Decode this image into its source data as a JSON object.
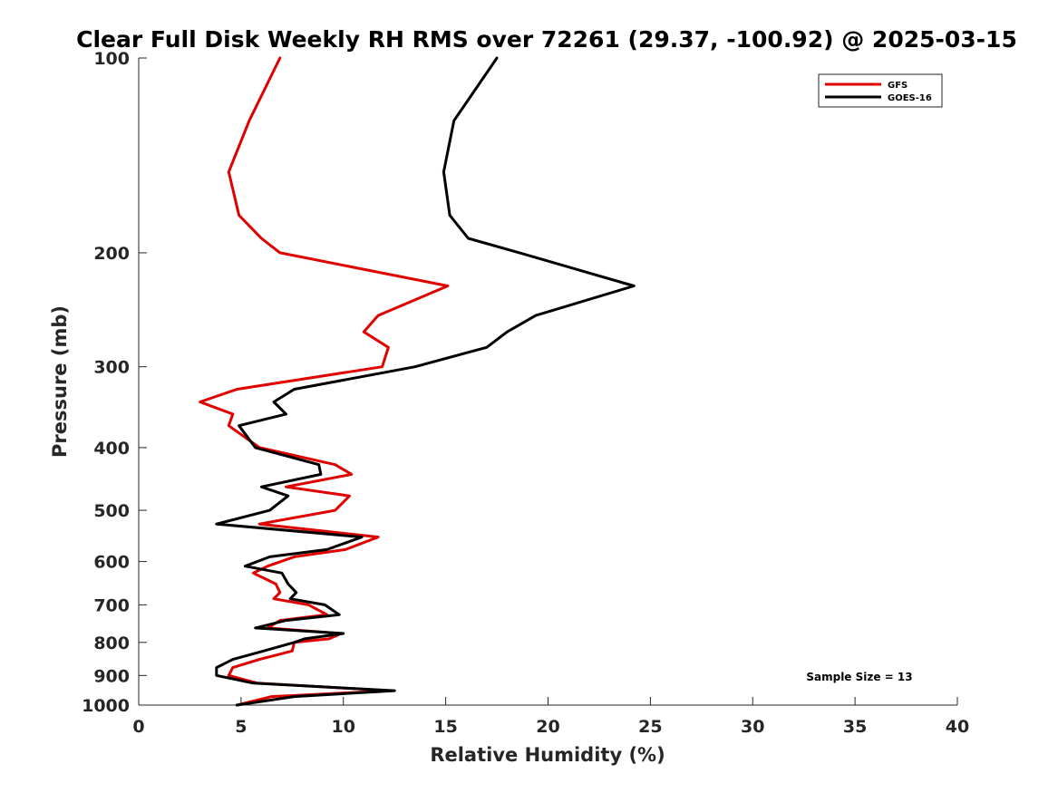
{
  "chart_data": {
    "type": "line",
    "title": "Clear Full Disk Weekly RH RMS over 72261 (29.37, -100.92) @ 2025-03-15",
    "xlabel": "Relative Humidity (%)",
    "ylabel": "Pressure (mb)",
    "xlim": [
      0,
      40
    ],
    "ylim": [
      100,
      1000
    ],
    "y_scale": "log",
    "y_reversed": true,
    "x_ticks": [
      0,
      5,
      10,
      15,
      20,
      25,
      30,
      35,
      40
    ],
    "y_ticks": [
      100,
      200,
      300,
      400,
      500,
      600,
      700,
      800,
      900,
      1000
    ],
    "grid": false,
    "legend_position": "top-right",
    "annotation": "Sample Size = 13",
    "series": [
      {
        "name": "GFS",
        "color": "#e00000",
        "points": [
          [
            6.9,
            100
          ],
          [
            5.4,
            125
          ],
          [
            4.4,
            150
          ],
          [
            4.9,
            175
          ],
          [
            6.0,
            190
          ],
          [
            6.9,
            200
          ],
          [
            15.1,
            225
          ],
          [
            11.7,
            250
          ],
          [
            11.0,
            265
          ],
          [
            12.2,
            280
          ],
          [
            11.9,
            300
          ],
          [
            4.8,
            325
          ],
          [
            3.0,
            340
          ],
          [
            4.6,
            355
          ],
          [
            4.4,
            370
          ],
          [
            5.9,
            400
          ],
          [
            9.6,
            425
          ],
          [
            10.4,
            440
          ],
          [
            7.2,
            460
          ],
          [
            10.3,
            475
          ],
          [
            9.6,
            500
          ],
          [
            5.9,
            525
          ],
          [
            11.7,
            550
          ],
          [
            10.1,
            575
          ],
          [
            7.6,
            590
          ],
          [
            6.3,
            610
          ],
          [
            5.6,
            625
          ],
          [
            6.7,
            650
          ],
          [
            6.9,
            670
          ],
          [
            6.6,
            685
          ],
          [
            8.3,
            700
          ],
          [
            9.2,
            725
          ],
          [
            6.9,
            740
          ],
          [
            6.3,
            760
          ],
          [
            9.9,
            775
          ],
          [
            9.3,
            790
          ],
          [
            7.6,
            800
          ],
          [
            7.5,
            825
          ],
          [
            5.9,
            850
          ],
          [
            4.6,
            875
          ],
          [
            4.4,
            900
          ],
          [
            5.8,
            925
          ],
          [
            12.3,
            950
          ],
          [
            6.5,
            970
          ],
          [
            4.8,
            1000
          ]
        ]
      },
      {
        "name": "GOES-16",
        "color": "#000000",
        "points": [
          [
            17.5,
            100
          ],
          [
            15.4,
            125
          ],
          [
            14.9,
            150
          ],
          [
            15.2,
            175
          ],
          [
            16.1,
            190
          ],
          [
            18.6,
            200
          ],
          [
            24.2,
            225
          ],
          [
            19.4,
            250
          ],
          [
            18.0,
            265
          ],
          [
            17.0,
            280
          ],
          [
            13.5,
            300
          ],
          [
            7.6,
            325
          ],
          [
            6.6,
            340
          ],
          [
            7.2,
            355
          ],
          [
            4.9,
            370
          ],
          [
            5.7,
            400
          ],
          [
            8.8,
            425
          ],
          [
            8.9,
            440
          ],
          [
            6.0,
            460
          ],
          [
            7.3,
            475
          ],
          [
            6.4,
            500
          ],
          [
            3.8,
            525
          ],
          [
            10.9,
            550
          ],
          [
            9.2,
            575
          ],
          [
            6.4,
            590
          ],
          [
            5.2,
            610
          ],
          [
            7.0,
            625
          ],
          [
            7.3,
            650
          ],
          [
            7.7,
            670
          ],
          [
            7.4,
            685
          ],
          [
            9.1,
            700
          ],
          [
            9.8,
            725
          ],
          [
            7.2,
            740
          ],
          [
            5.7,
            760
          ],
          [
            10.0,
            775
          ],
          [
            8.1,
            790
          ],
          [
            7.6,
            800
          ],
          [
            6.1,
            825
          ],
          [
            4.6,
            850
          ],
          [
            3.8,
            875
          ],
          [
            3.8,
            900
          ],
          [
            5.6,
            925
          ],
          [
            12.5,
            950
          ],
          [
            7.6,
            970
          ],
          [
            4.8,
            1000
          ]
        ]
      }
    ]
  }
}
